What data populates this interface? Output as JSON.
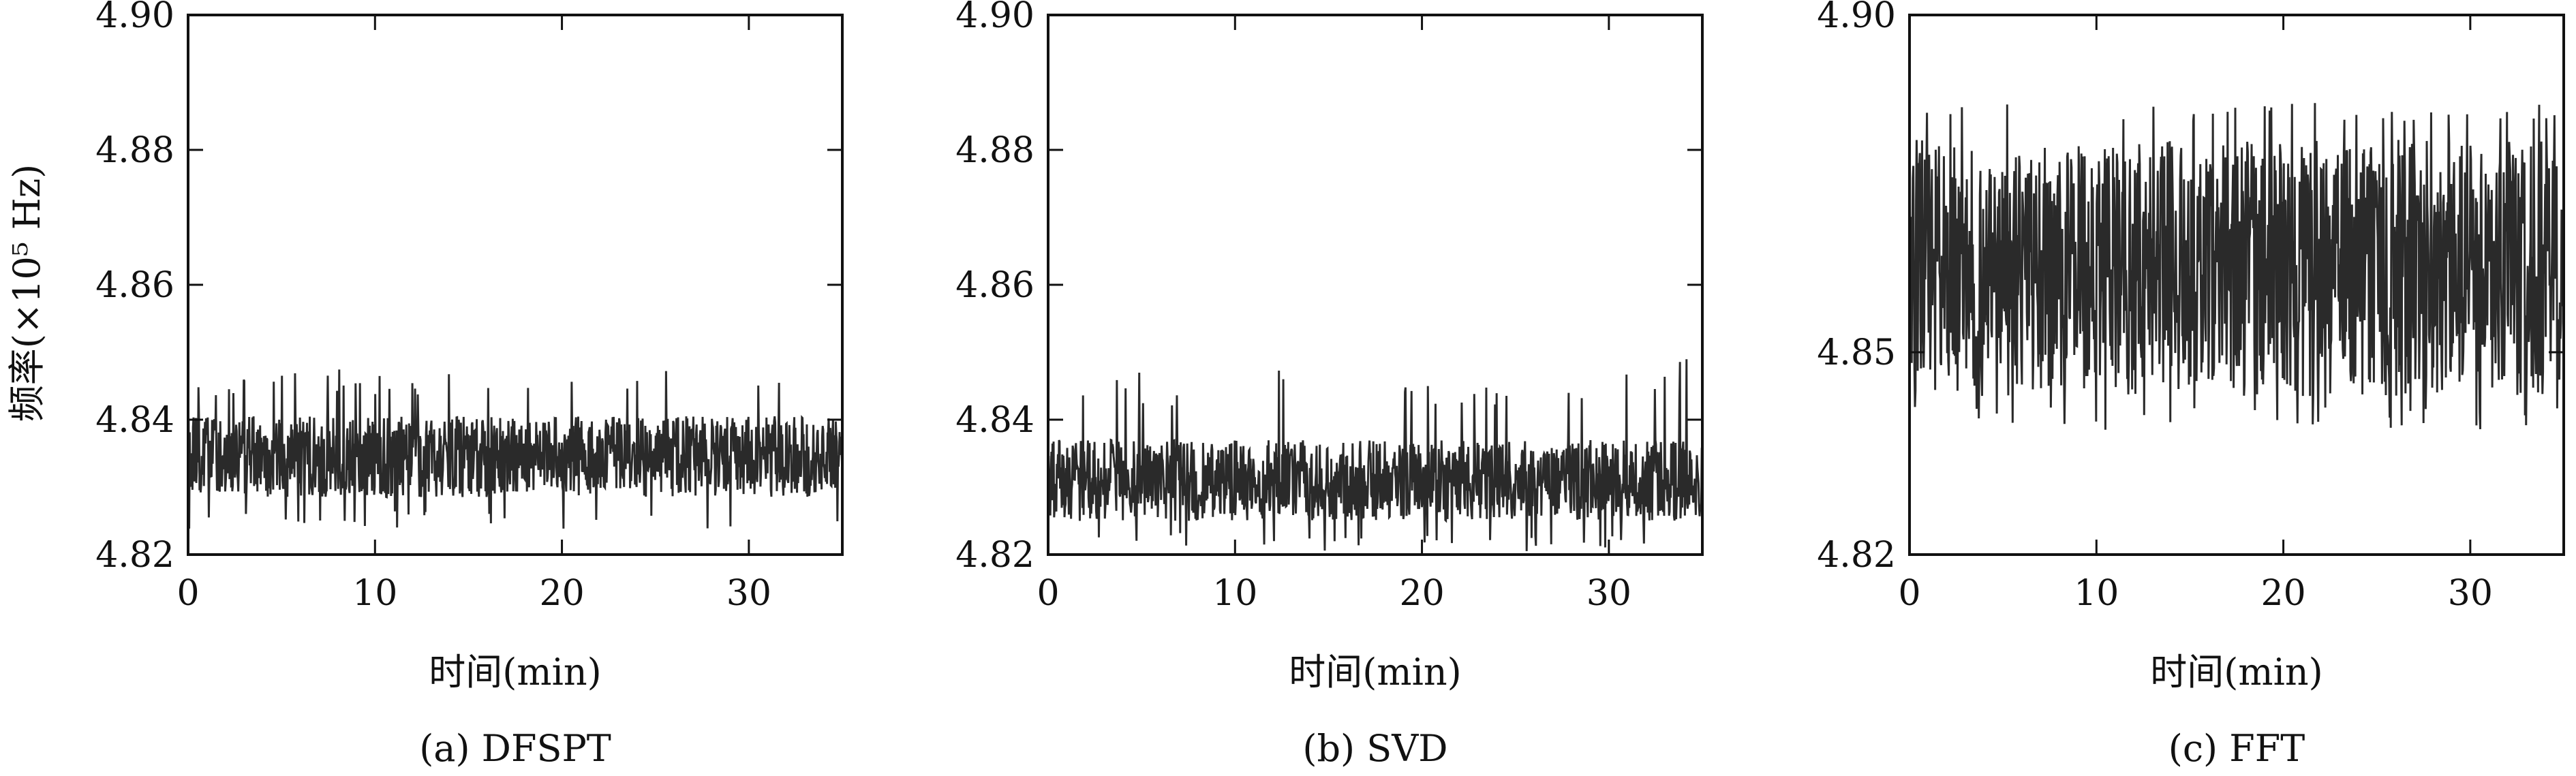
{
  "figure": {
    "ylabel": "频率(×10⁵ Hz)",
    "colors": {
      "trace": "#2a2a2a",
      "frame": "#111111",
      "background": "#ffffff"
    }
  },
  "chart_data": [
    {
      "type": "line",
      "caption": "(a) DFSPT",
      "xlabel": "时间(min)",
      "ylabel": "频率(×10⁵ Hz)",
      "xlim": [
        0,
        35
      ],
      "ylim": [
        4.82,
        4.9
      ],
      "xticks": [
        0,
        10,
        20,
        30
      ],
      "xtick_labels": [
        "0",
        "10",
        "20",
        "30"
      ],
      "yticks": [
        4.82,
        4.84,
        4.86,
        4.88,
        4.9
      ],
      "ytick_labels": [
        "4.82",
        "4.84",
        "4.86",
        "4.88",
        "4.90"
      ],
      "grid": false,
      "series": [
        {
          "mean": 4.8345,
          "band_low": 4.8285,
          "band_high": 4.8405,
          "min": 4.8235,
          "max": 4.8475,
          "points": 1200
        }
      ]
    },
    {
      "type": "line",
      "caption": "(b) SVD",
      "xlabel": "时间(min)",
      "xlim": [
        0,
        35
      ],
      "ylim": [
        4.82,
        4.9
      ],
      "xticks": [
        0,
        10,
        20,
        30
      ],
      "xtick_labels": [
        "0",
        "10",
        "20",
        "30"
      ],
      "yticks": [
        4.82,
        4.84,
        4.86,
        4.88,
        4.9
      ],
      "ytick_labels": [
        "4.82",
        "4.84",
        "4.86",
        "4.88",
        "4.90"
      ],
      "grid": false,
      "series": [
        {
          "mean": 4.831,
          "band_low": 4.825,
          "band_high": 4.837,
          "min": 4.8205,
          "max": 4.849,
          "points": 1200
        }
      ]
    },
    {
      "type": "line",
      "caption": "(c) FFT",
      "xlabel": "时间(min)",
      "xlim": [
        0,
        35
      ],
      "ylim": [
        4.82,
        4.9
      ],
      "xticks": [
        0,
        10,
        20,
        30
      ],
      "xtick_labels": [
        "0",
        "10",
        "20",
        "30"
      ],
      "yticks": [
        4.82,
        4.85,
        4.9
      ],
      "ytick_labels": [
        "4.82",
        "4.85",
        "4.90"
      ],
      "grid": false,
      "series": [
        {
          "mean": 4.8625,
          "band_low": 4.8445,
          "band_high": 4.8825,
          "min": 4.8385,
          "max": 4.887,
          "points": 1200
        }
      ]
    }
  ]
}
